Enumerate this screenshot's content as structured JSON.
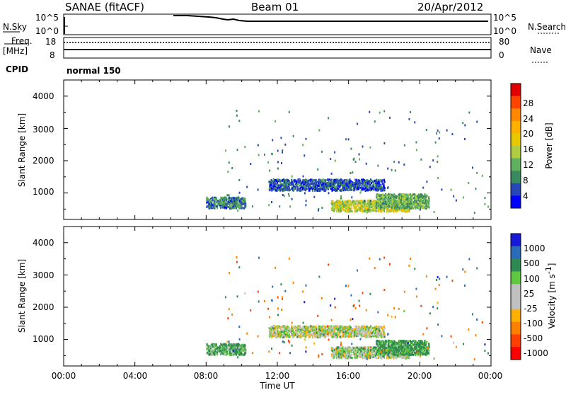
{
  "header": {
    "station": "SANAE (fitACF)",
    "beam": "Beam 01",
    "date": "20/Apr/2012"
  },
  "noise_panel": {
    "left_label": "N.Sky",
    "right_label": "N.Search",
    "left_ticks": [
      "10^5",
      "10^0"
    ],
    "right_ticks": [
      "10^5",
      "10^0"
    ]
  },
  "freq_panel": {
    "left_label_top": "Freq.",
    "left_label_bottom": "[MHz]",
    "right_label": "Nave",
    "left_ticks": [
      "18",
      "8"
    ],
    "right_ticks": [
      "80",
      "0"
    ]
  },
  "cpid": {
    "label": "CPID",
    "value": "normal 150"
  },
  "power_panel": {
    "ylabel": "Slant Range [km]",
    "yticks": [
      "4000",
      "3000",
      "2000",
      "1000"
    ],
    "colorbar_label": "Power [dB]",
    "colorbar_ticks": [
      "28",
      "24",
      "20",
      "16",
      "12",
      "8",
      "4"
    ],
    "colorbar_colors": [
      "#e00000",
      "#ff4400",
      "#ff8800",
      "#ffb000",
      "#e8c800",
      "#b0cc40",
      "#60b060",
      "#3a8a60",
      "#2848b8",
      "#0000ff"
    ]
  },
  "velocity_panel": {
    "ylabel": "Slant Range [km]",
    "yticks": [
      "4000",
      "3000",
      "2000",
      "1000"
    ],
    "colorbar_label": "Velocity [m s",
    "colorbar_label_sup": "-1",
    "colorbar_label_end": "]",
    "colorbar_ticks": [
      "1000",
      "500",
      "100",
      "25",
      "-25",
      "-100",
      "-500",
      "-1000"
    ],
    "colorbar_colors": [
      "#1818d8",
      "#2a6ab8",
      "#2e8a50",
      "#60c840",
      "#c0c0c0",
      "#c0c0c0",
      "#ffb000",
      "#ff8000",
      "#ff4000",
      "#ff0000"
    ]
  },
  "x_axis": {
    "label": "Time UT",
    "ticks": [
      "00:00",
      "04:00",
      "08:00",
      "12:00",
      "16:00",
      "20:00",
      "00:00"
    ]
  },
  "chart_data": {
    "type": "heatmap",
    "xlabel": "Time UT",
    "ylabel": "Slant Range [km]",
    "xlim": [
      "00:00",
      "24:00"
    ],
    "ylim": [
      180,
      4500
    ],
    "power_scale": {
      "label": "Power [dB]",
      "range": [
        0,
        30
      ]
    },
    "velocity_scale": {
      "label": "Velocity [m s-1]",
      "range": [
        -1000,
        1000
      ]
    },
    "features": [
      {
        "time_start_h": 8.0,
        "time_end_h": 10.2,
        "range_start_km": 550,
        "range_end_km": 900,
        "power_db": 6,
        "velocity_ms": 60
      },
      {
        "time_start_h": 15.0,
        "time_end_h": 19.5,
        "range_start_km": 450,
        "range_end_km": 800,
        "power_db": 14,
        "velocity_ms": 15
      },
      {
        "time_start_h": 17.5,
        "time_end_h": 20.5,
        "range_start_km": 550,
        "range_end_km": 1000,
        "power_db": 10,
        "velocity_ms": 80
      },
      {
        "time_start_h": 11.5,
        "time_end_h": 18.0,
        "range_start_km": 1100,
        "range_end_km": 1450,
        "power_db": 4,
        "velocity_ms": 10
      }
    ]
  }
}
